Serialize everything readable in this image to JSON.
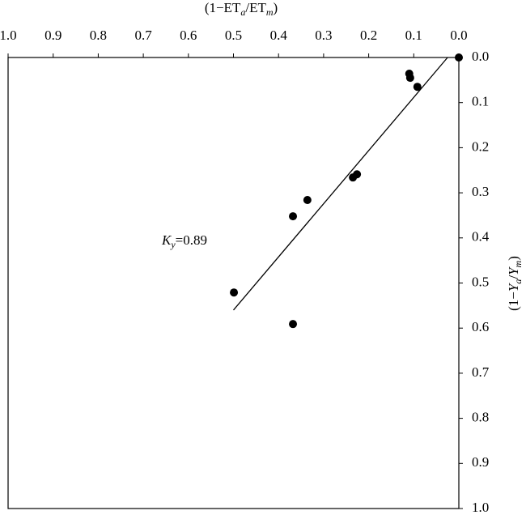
{
  "chart_data": {
    "type": "scatter",
    "x_label": [
      "(1−ET",
      "a",
      "/ET",
      "m",
      ")"
    ],
    "y_label": [
      "(1−",
      "Y",
      "a",
      "/",
      "Y",
      "m",
      ")"
    ],
    "annotation": [
      "K",
      "y",
      "=0.89"
    ],
    "x": [
      0.0,
      0.11,
      0.108,
      0.092,
      0.226,
      0.235,
      0.336,
      0.368,
      0.499,
      0.368
    ],
    "values": [
      0.0,
      0.036,
      0.045,
      0.065,
      0.259,
      0.266,
      0.316,
      0.352,
      0.521,
      0.591
    ],
    "color": "#000000",
    "fit_line": {
      "x": [
        0.025,
        0.5
      ],
      "y": [
        0.0,
        0.56
      ]
    },
    "xlim": [
      1.0,
      0.0
    ],
    "ylim": [
      0.0,
      1.0
    ],
    "xticks": [
      {
        "value": 1,
        "label": "1.0"
      },
      0.9,
      0.8,
      0.7,
      0.6,
      0.5,
      0.4,
      0.3,
      0.2,
      0.1,
      {
        "value": 0,
        "label": "0.0"
      }
    ],
    "yticks": [
      {
        "value": 0,
        "label": "0.0"
      },
      0.1,
      0.2,
      0.3,
      0.4,
      0.5,
      0.6,
      0.7,
      0.8,
      0.9,
      {
        "value": 1,
        "label": "1.0"
      }
    ]
  }
}
